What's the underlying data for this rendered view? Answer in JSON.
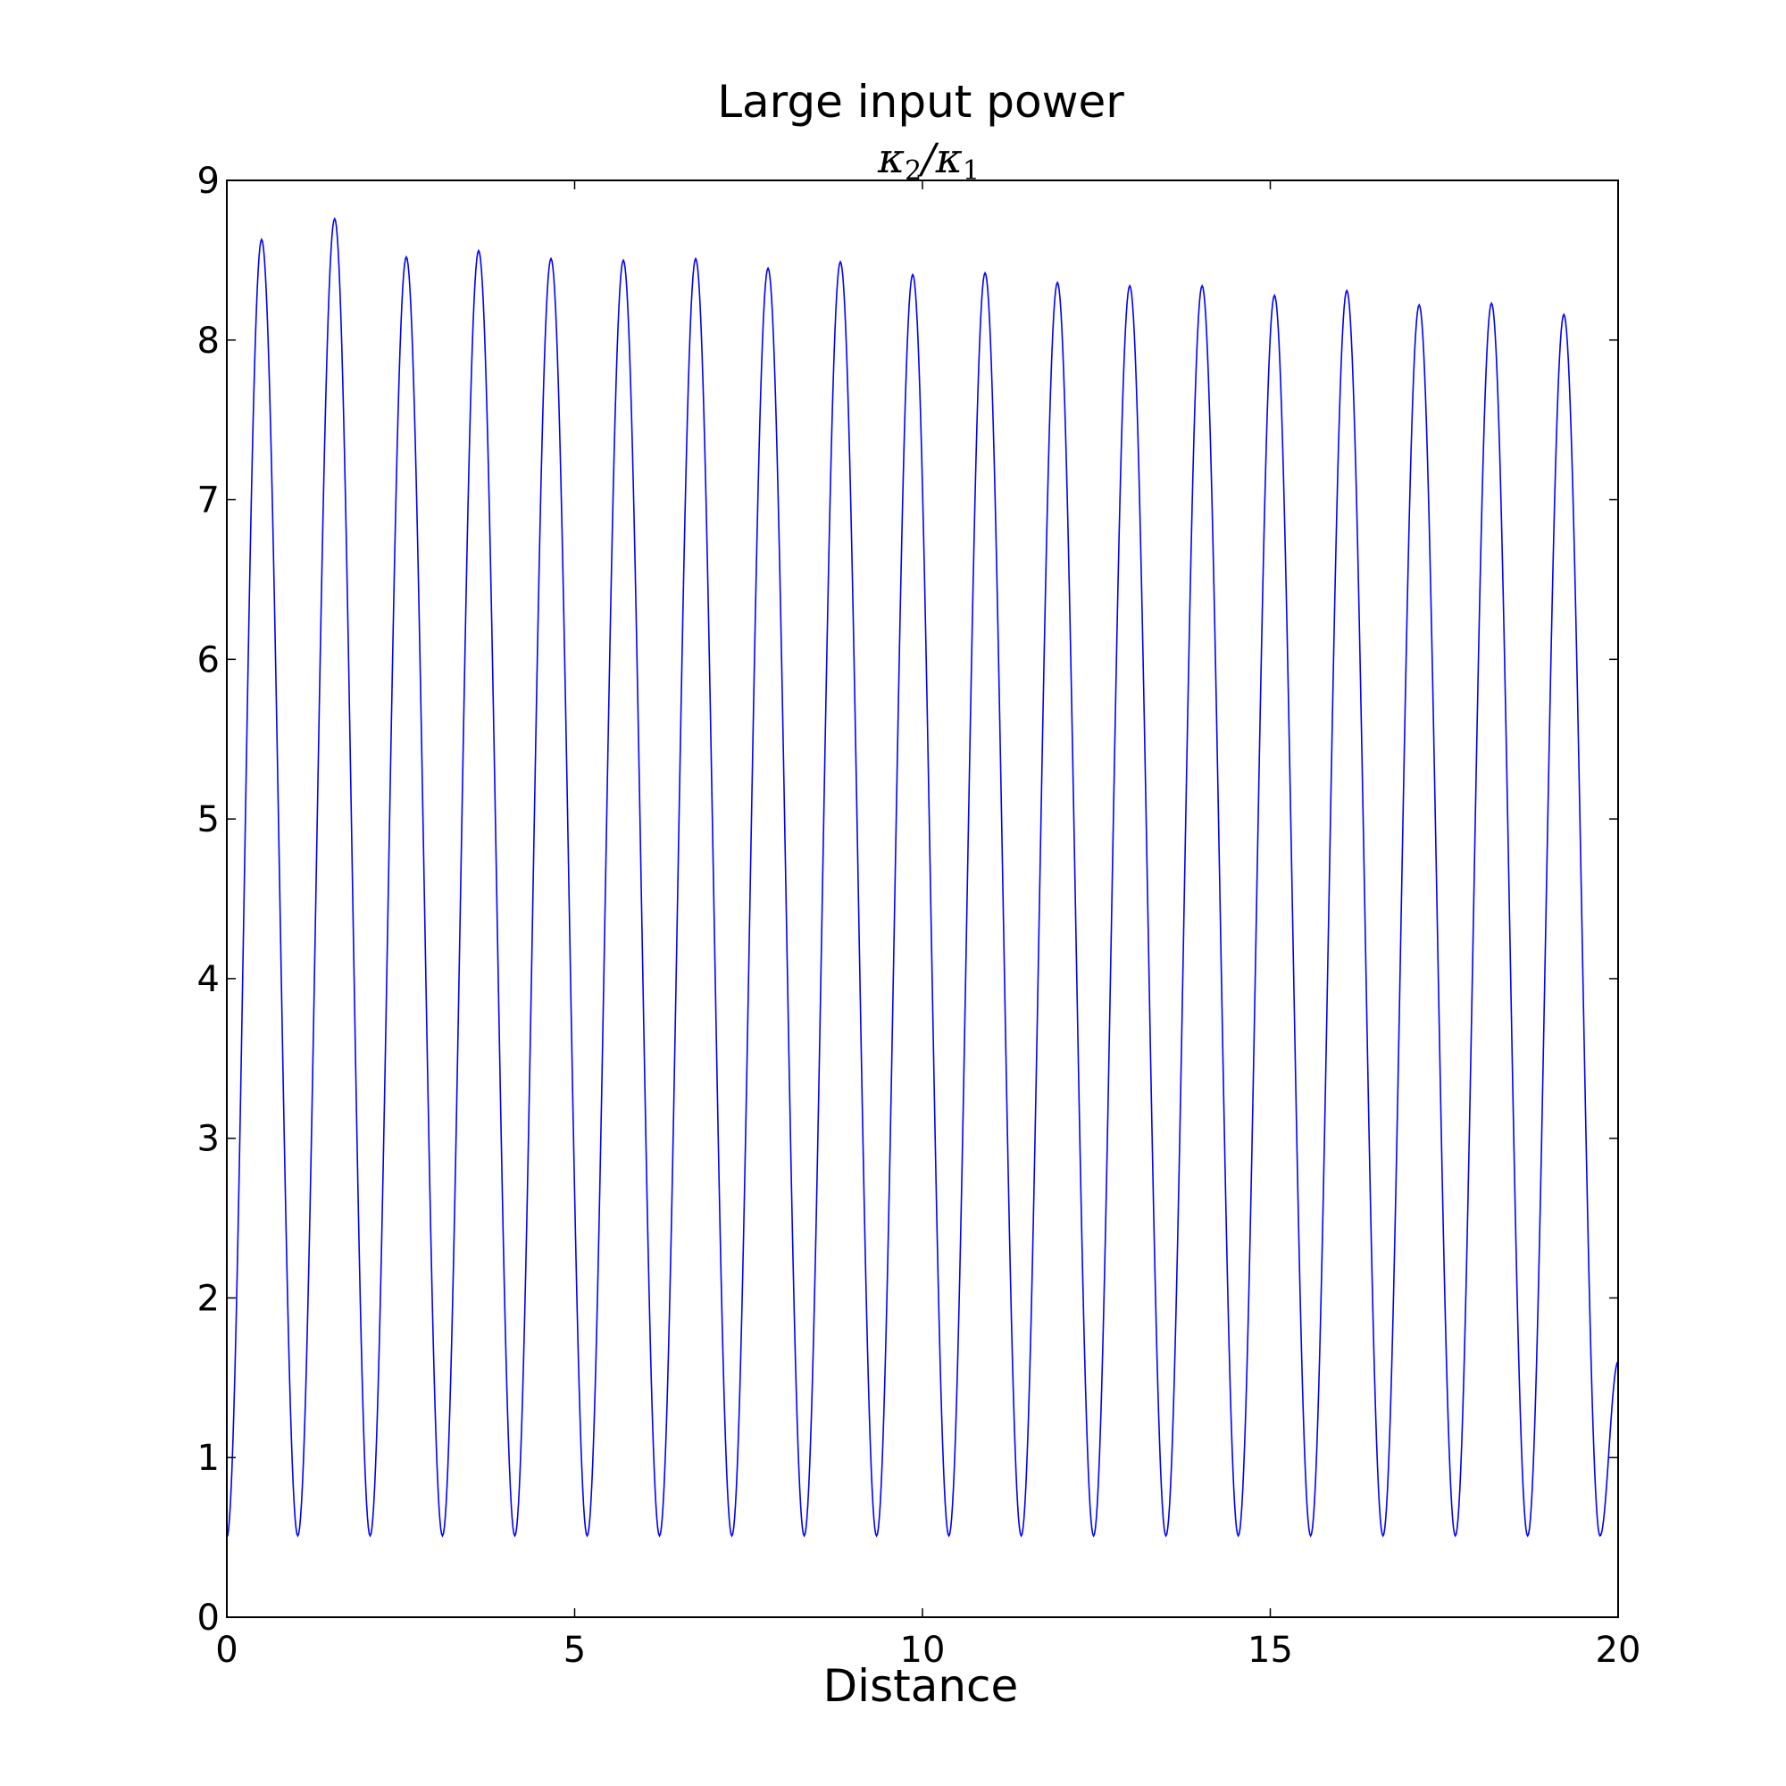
{
  "chart_data": {
    "type": "line",
    "title": "Large input power",
    "xlabel": "Distance",
    "ylabel": {
      "kappa": "κ",
      "num_sub": "2",
      "slash": "/",
      "den_sub": "1"
    },
    "xlim": [
      0,
      20
    ],
    "ylim": [
      0,
      9
    ],
    "x_ticks": [
      0,
      5,
      10,
      15,
      20
    ],
    "x_tick_labels": [
      "0",
      "5",
      "10",
      "15",
      "20"
    ],
    "y_ticks": [
      0,
      1,
      2,
      3,
      4,
      5,
      6,
      7,
      8,
      9
    ],
    "y_tick_labels": [
      "0",
      "1",
      "2",
      "3",
      "4",
      "5",
      "6",
      "7",
      "8",
      "9"
    ],
    "grid": false,
    "legend": "none",
    "series": [
      {
        "color": "#0000ff",
        "x": [
          0,
          0.5,
          1.02,
          1.55,
          2.06,
          2.58,
          3.1,
          3.62,
          4.14,
          4.66,
          5.18,
          5.7,
          6.22,
          6.74,
          7.26,
          7.78,
          8.3,
          8.82,
          9.34,
          9.86,
          10.38,
          10.9,
          11.42,
          11.94,
          12.46,
          12.98,
          13.5,
          14.02,
          14.54,
          15.06,
          15.58,
          16.1,
          16.62,
          17.14,
          17.66,
          18.18,
          18.7,
          19.22,
          19.74,
          20
        ],
        "y": [
          0.5,
          8.63,
          0.51,
          8.76,
          0.51,
          8.52,
          0.51,
          8.56,
          0.51,
          8.51,
          0.51,
          8.5,
          0.51,
          8.51,
          0.51,
          8.45,
          0.51,
          8.49,
          0.51,
          8.41,
          0.51,
          8.42,
          0.51,
          8.36,
          0.51,
          8.34,
          0.51,
          8.34,
          0.51,
          8.28,
          0.51,
          8.31,
          0.51,
          8.22,
          0.51,
          8.23,
          0.51,
          8.16,
          0.51,
          1.6
        ]
      }
    ]
  }
}
